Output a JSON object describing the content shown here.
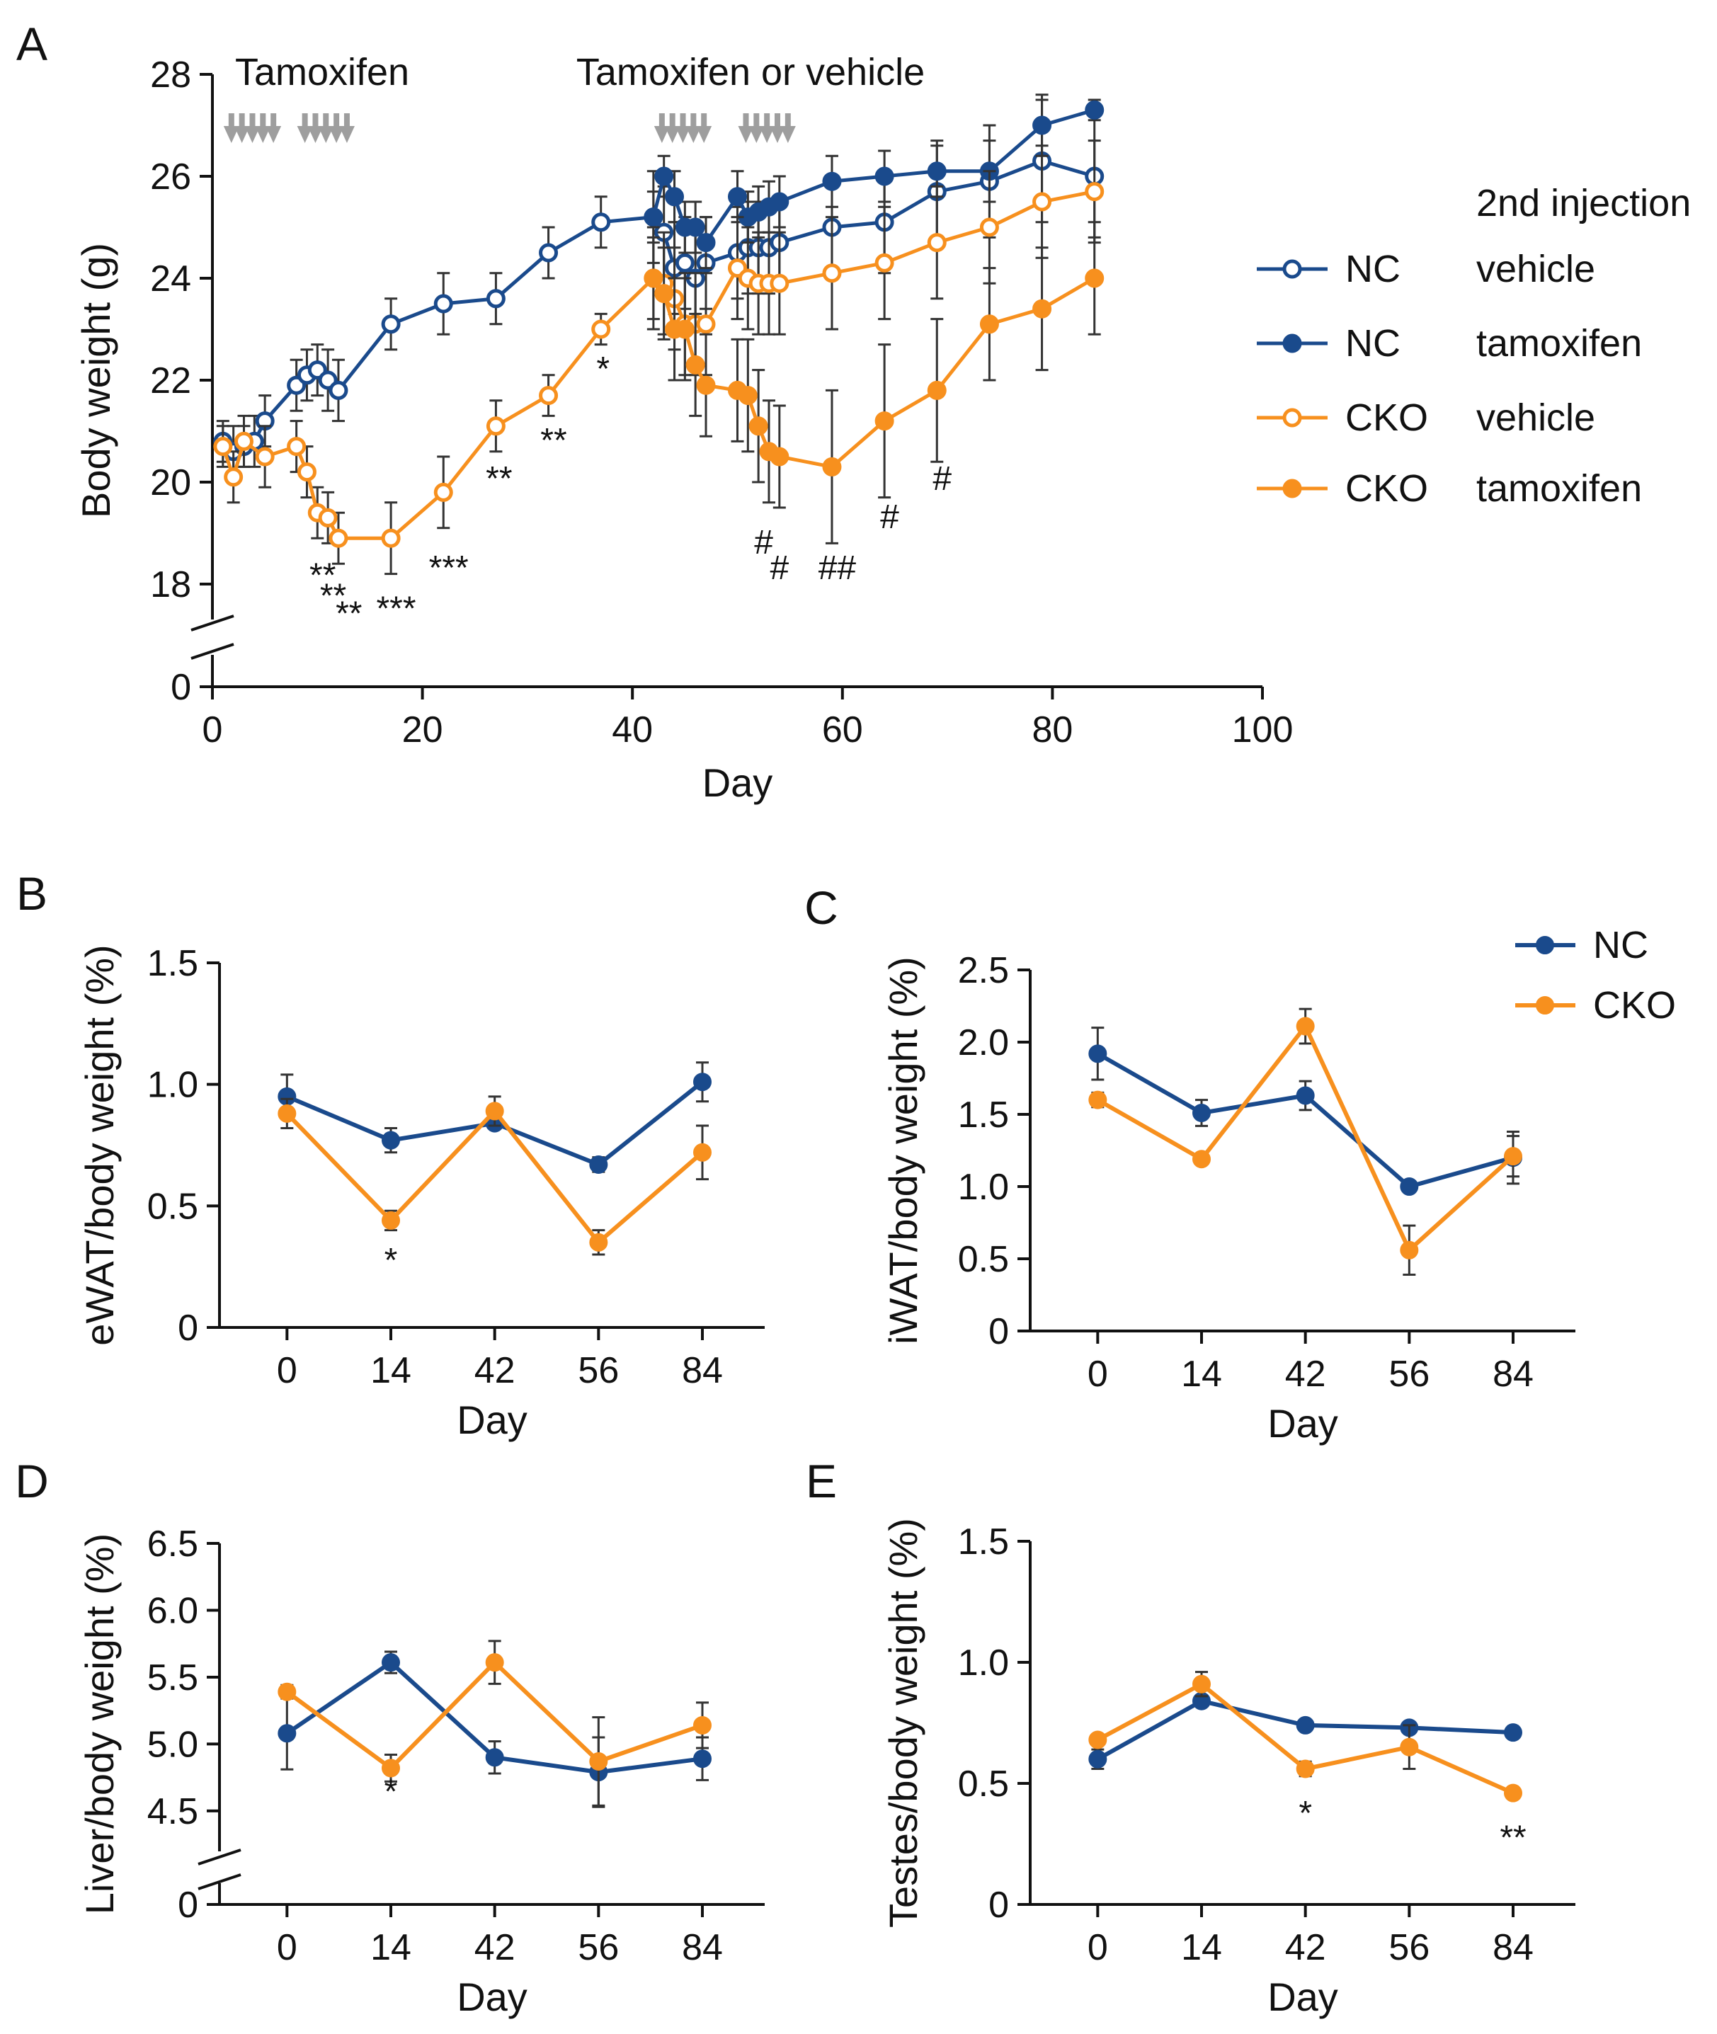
{
  "colors": {
    "nc": "#1a4a8c",
    "cko": "#f7901e",
    "arrow": "#9e9e9e",
    "axis": "#111111",
    "errbar": "#333333"
  },
  "chart_data": [
    {
      "id": "A",
      "panel_label": "A",
      "type": "line",
      "title": "",
      "xlabel": "Day",
      "ylabel": "Body weight (g)",
      "xlim": [
        0,
        100
      ],
      "ylim": [
        17,
        28
      ],
      "x_ticks": [
        0,
        20,
        40,
        60,
        80,
        100
      ],
      "y_ticks": [
        18,
        20,
        22,
        24,
        26,
        28
      ],
      "y_break_label": "0",
      "annotations": {
        "first": "Tamoxifen",
        "second": "Tamoxifen or vehicle"
      },
      "injection_days": [
        1,
        2,
        3,
        4,
        5,
        8,
        9,
        10,
        11,
        12,
        42,
        43,
        44,
        45,
        46,
        50,
        51,
        52,
        53,
        54
      ],
      "legend": {
        "header": "2nd injection",
        "entries": [
          {
            "group": "NC",
            "injection": "vehicle",
            "series": 0
          },
          {
            "group": "NC",
            "injection": "tamoxifen",
            "series": 1
          },
          {
            "group": "CKO",
            "injection": "vehicle",
            "series": 2
          },
          {
            "group": "CKO",
            "injection": "tamoxifen",
            "series": 3
          }
        ]
      },
      "series": [
        {
          "name": "NC vehicle",
          "color_key": "nc",
          "filled": false,
          "x": [
            1,
            2,
            3,
            4,
            5,
            8,
            9,
            10,
            11,
            12,
            17,
            22,
            27,
            32,
            37,
            42,
            43,
            44,
            45,
            46,
            47,
            50,
            51,
            52,
            53,
            54,
            59,
            64,
            69,
            74,
            79,
            84
          ],
          "y": [
            20.8,
            20.6,
            20.7,
            20.8,
            21.2,
            21.9,
            22.1,
            22.2,
            22.0,
            21.8,
            23.1,
            23.5,
            23.6,
            24.5,
            25.1,
            25.2,
            24.9,
            24.2,
            24.3,
            24.0,
            24.3,
            24.5,
            24.6,
            24.6,
            24.6,
            24.7,
            25.0,
            25.1,
            25.7,
            25.9,
            26.3,
            26.0
          ],
          "err": [
            0.4,
            0.5,
            0.4,
            0.5,
            0.5,
            0.5,
            0.5,
            0.5,
            0.6,
            0.6,
            0.5,
            0.6,
            0.5,
            0.5,
            0.5,
            0.9,
            0.9,
            0.9,
            0.9,
            0.9,
            0.9,
            0.9,
            0.9,
            0.9,
            0.9,
            0.9,
            1.0,
            1.0,
            1.0,
            1.1,
            1.2,
            1.2
          ]
        },
        {
          "name": "NC tamoxifen",
          "color_key": "nc",
          "filled": true,
          "x": [
            42,
            43,
            44,
            45,
            46,
            47,
            50,
            51,
            52,
            53,
            54,
            59,
            64,
            69,
            74,
            79,
            84
          ],
          "y": [
            25.2,
            26.0,
            25.6,
            25.0,
            25.0,
            24.7,
            25.6,
            25.2,
            25.3,
            25.4,
            25.5,
            25.9,
            26.0,
            26.1,
            26.1,
            27.0,
            27.3
          ],
          "err": [
            0.5,
            0.4,
            0.5,
            0.5,
            0.5,
            0.5,
            0.5,
            0.5,
            0.5,
            0.5,
            0.5,
            0.5,
            0.5,
            0.5,
            0.6,
            0.6,
            0.2
          ]
        },
        {
          "name": "CKO vehicle",
          "color_key": "cko",
          "filled": false,
          "x": [
            1,
            2,
            3,
            5,
            8,
            9,
            10,
            11,
            12,
            17,
            22,
            27,
            32,
            37,
            42,
            43,
            44,
            45,
            46,
            47,
            50,
            51,
            52,
            53,
            54,
            59,
            64,
            69,
            74,
            79,
            84
          ],
          "y": [
            20.7,
            20.1,
            20.8,
            20.5,
            20.7,
            20.2,
            19.4,
            19.3,
            18.9,
            18.9,
            19.8,
            21.1,
            21.7,
            23.0,
            24.0,
            23.9,
            23.6,
            23.1,
            23.1,
            23.1,
            24.2,
            24.0,
            23.9,
            23.9,
            23.9,
            24.1,
            24.3,
            24.7,
            25.0,
            25.5,
            25.7
          ],
          "err": [
            0.4,
            0.5,
            0.5,
            0.6,
            0.5,
            0.5,
            0.5,
            0.5,
            0.5,
            0.7,
            0.7,
            0.5,
            0.4,
            0.3,
            1.0,
            1.0,
            1.0,
            1.0,
            1.0,
            1.0,
            1.0,
            1.0,
            1.0,
            1.0,
            1.0,
            1.1,
            1.1,
            1.1,
            1.1,
            1.1,
            1.0
          ]
        },
        {
          "name": "CKO tamoxifen",
          "color_key": "cko",
          "filled": true,
          "x": [
            42,
            43,
            44,
            45,
            46,
            47,
            50,
            51,
            52,
            53,
            54,
            59,
            64,
            69,
            74,
            79,
            84
          ],
          "y": [
            24.0,
            23.7,
            23.0,
            23.0,
            22.3,
            21.9,
            21.8,
            21.7,
            21.1,
            20.6,
            20.5,
            20.3,
            21.2,
            21.8,
            23.1,
            23.4,
            24.0
          ],
          "err": [
            0.8,
            0.9,
            1.0,
            1.0,
            1.0,
            1.0,
            1.0,
            1.1,
            1.1,
            1.0,
            1.0,
            1.5,
            1.5,
            1.4,
            1.1,
            1.2,
            1.1
          ]
        }
      ],
      "significance": [
        {
          "x": 10.5,
          "y": 17.95,
          "text": "**"
        },
        {
          "x": 11.5,
          "y": 17.55,
          "text": "**"
        },
        {
          "x": 13,
          "y": 17.2,
          "text": "**"
        },
        {
          "x": 17.5,
          "y": 17.3,
          "text": "***"
        },
        {
          "x": 22.5,
          "y": 18.1,
          "text": "***"
        },
        {
          "x": 27.3,
          "y": 19.85,
          "text": "**"
        },
        {
          "x": 32.5,
          "y": 20.6,
          "text": "**"
        },
        {
          "x": 37.2,
          "y": 22.0,
          "text": "*"
        },
        {
          "x": 52.5,
          "y": 18.6,
          "text": "#"
        },
        {
          "x": 54,
          "y": 18.1,
          "text": "#"
        },
        {
          "x": 59.5,
          "y": 18.1,
          "text": "##"
        },
        {
          "x": 64.5,
          "y": 19.1,
          "text": "#"
        },
        {
          "x": 69.5,
          "y": 19.85,
          "text": "#"
        }
      ]
    },
    {
      "id": "B",
      "panel_label": "B",
      "type": "line",
      "title": "",
      "xlabel": "Day",
      "ylabel": "eWAT/body weight (%)",
      "categories": [
        "0",
        "14",
        "42",
        "56",
        "84"
      ],
      "ylim": [
        0,
        1.5
      ],
      "y_ticks": [
        0,
        0.5,
        1.0,
        1.5
      ],
      "y_tick_labels": [
        "0",
        "0.5",
        "1.0",
        "1.5"
      ],
      "series": [
        {
          "name": "NC",
          "color_key": "nc",
          "values": [
            0.95,
            0.77,
            0.84,
            0.67,
            1.01
          ],
          "err": [
            0.09,
            0.05,
            0.02,
            0.03,
            0.08
          ]
        },
        {
          "name": "CKO",
          "color_key": "cko",
          "values": [
            0.88,
            0.44,
            0.89,
            0.35,
            0.72
          ],
          "err": [
            0.06,
            0.04,
            0.06,
            0.05,
            0.11
          ]
        }
      ],
      "significance": [
        {
          "category": 1,
          "y": 0.23,
          "text": "*"
        }
      ]
    },
    {
      "id": "C",
      "panel_label": "C",
      "type": "line",
      "title": "",
      "xlabel": "Day",
      "ylabel": "iWAT/body weight (%)",
      "categories": [
        "0",
        "14",
        "42",
        "56",
        "84"
      ],
      "ylim": [
        0,
        2.5
      ],
      "y_ticks": [
        0,
        0.5,
        1.0,
        1.5,
        2.0,
        2.5
      ],
      "y_tick_labels": [
        "0",
        "0.5",
        "1.0",
        "1.5",
        "2.0",
        "2.5"
      ],
      "legend": {
        "entries": [
          {
            "label": "NC",
            "series": 0
          },
          {
            "label": "CKO",
            "series": 1
          }
        ]
      },
      "series": [
        {
          "name": "NC",
          "color_key": "nc",
          "values": [
            1.92,
            1.51,
            1.63,
            1.0,
            1.2
          ],
          "err": [
            0.18,
            0.09,
            0.1,
            0.02,
            0.18
          ]
        },
        {
          "name": "CKO",
          "color_key": "cko",
          "values": [
            1.6,
            1.19,
            2.11,
            0.56,
            1.21
          ],
          "err": [
            0.05,
            0.03,
            0.12,
            0.17,
            0.14
          ]
        }
      ],
      "significance": []
    },
    {
      "id": "D",
      "panel_label": "D",
      "type": "line",
      "title": "",
      "xlabel": "Day",
      "ylabel": "Liver/body weight (%)",
      "categories": [
        "0",
        "14",
        "42",
        "56",
        "84"
      ],
      "ylim": [
        4.33,
        6.5
      ],
      "y_ticks": [
        4.5,
        5.0,
        5.5,
        6.0,
        6.5
      ],
      "y_tick_labels": [
        "4.5",
        "5.0",
        "5.5",
        "6.0",
        "6.5"
      ],
      "y_break_label": "0",
      "series": [
        {
          "name": "NC",
          "color_key": "nc",
          "values": [
            5.08,
            5.61,
            4.9,
            4.79,
            4.89
          ],
          "err": [
            0.27,
            0.08,
            0.12,
            0.26,
            0.16
          ]
        },
        {
          "name": "CKO",
          "color_key": "cko",
          "values": [
            5.39,
            4.82,
            5.61,
            4.87,
            5.14
          ],
          "err": [
            0.05,
            0.1,
            0.16,
            0.33,
            0.17
          ]
        }
      ],
      "significance": [
        {
          "category": 1,
          "y": 4.56,
          "text": "*"
        }
      ]
    },
    {
      "id": "E",
      "panel_label": "E",
      "type": "line",
      "title": "",
      "xlabel": "Day",
      "ylabel": "Testes/body weight (%)",
      "categories": [
        "0",
        "14",
        "42",
        "56",
        "84"
      ],
      "ylim": [
        0,
        1.5
      ],
      "y_ticks": [
        0,
        0.5,
        1.0,
        1.5
      ],
      "y_tick_labels": [
        "0",
        "0.5",
        "1.0",
        "1.5"
      ],
      "series": [
        {
          "name": "NC",
          "color_key": "nc",
          "values": [
            0.6,
            0.84,
            0.74,
            0.73,
            0.71
          ],
          "err": [
            0.04,
            0.02,
            0.02,
            0.02,
            0.01
          ]
        },
        {
          "name": "CKO",
          "color_key": "cko",
          "values": [
            0.68,
            0.91,
            0.56,
            0.65,
            0.46
          ],
          "err": [
            0.02,
            0.05,
            0.03,
            0.09,
            0.01
          ]
        }
      ],
      "significance": [
        {
          "category": 2,
          "y": 0.33,
          "text": "*"
        },
        {
          "category": 4,
          "y": 0.23,
          "text": "**"
        }
      ]
    }
  ]
}
